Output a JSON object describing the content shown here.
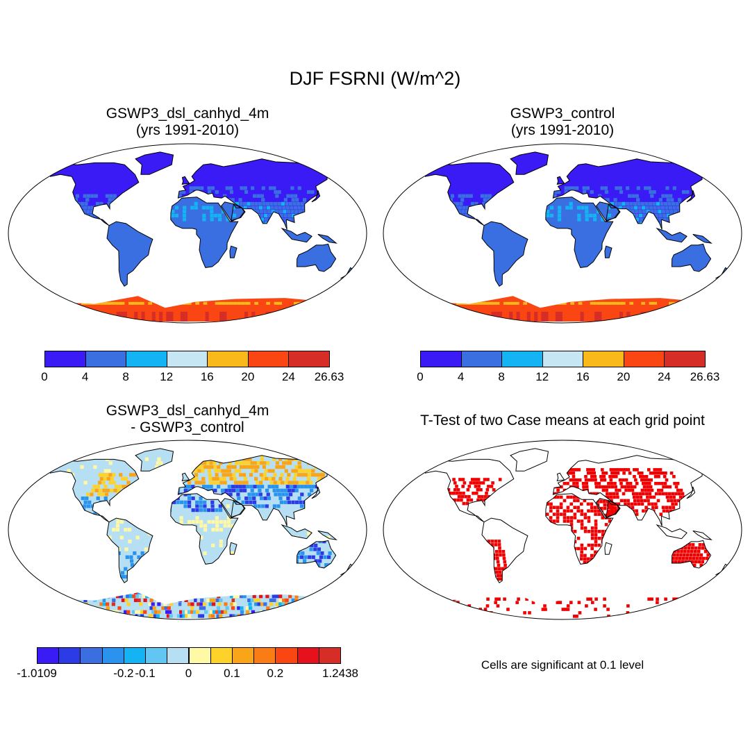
{
  "title": "DJF FSRNI (W/m^2)",
  "panels": [
    {
      "id": "p1",
      "title": [
        "GSWP3_dsl_canhyd_4m",
        "(yrs 1991-2010)"
      ]
    },
    {
      "id": "p2",
      "title": [
        "GSWP3_control",
        "(yrs 1991-2010)"
      ]
    },
    {
      "id": "p3",
      "title": [
        "GSWP3_dsl_canhyd_4m",
        "- GSWP3_control"
      ]
    },
    {
      "id": "p4",
      "title": [
        "T-Test of two Case means at each grid point"
      ]
    }
  ],
  "colorbar_abs": {
    "colors": [
      "#3a1af5",
      "#3a6fe2",
      "#14b4f4",
      "#c6e6f4",
      "#f9b91a",
      "#f94612",
      "#d62d26"
    ],
    "labels": [
      "0",
      "4",
      "8",
      "12",
      "16",
      "20",
      "24",
      "26.63"
    ]
  },
  "colorbar_diff": {
    "colors": [
      "#3a1af5",
      "#2c3be6",
      "#3a6fe2",
      "#2993ee",
      "#14b4f4",
      "#63c5f1",
      "#b7dff3",
      "#fff8a6",
      "#fdd22a",
      "#f9a51a",
      "#f97d14",
      "#f94612",
      "#e6111a",
      "#d62d26"
    ],
    "labels": [
      {
        "text": "-1.0109",
        "at": 0
      },
      {
        "text": "-0.2",
        "at": 4
      },
      {
        "text": "-0.1",
        "at": 5
      },
      {
        "text": "0",
        "at": 7
      },
      {
        "text": "0.1",
        "at": 9
      },
      {
        "text": "0.2",
        "at": 11
      },
      {
        "text": "1.2438",
        "at": 14
      }
    ]
  },
  "significance_note": "Cells are significant at 0.1 level",
  "significance_color": "#f00000"
}
